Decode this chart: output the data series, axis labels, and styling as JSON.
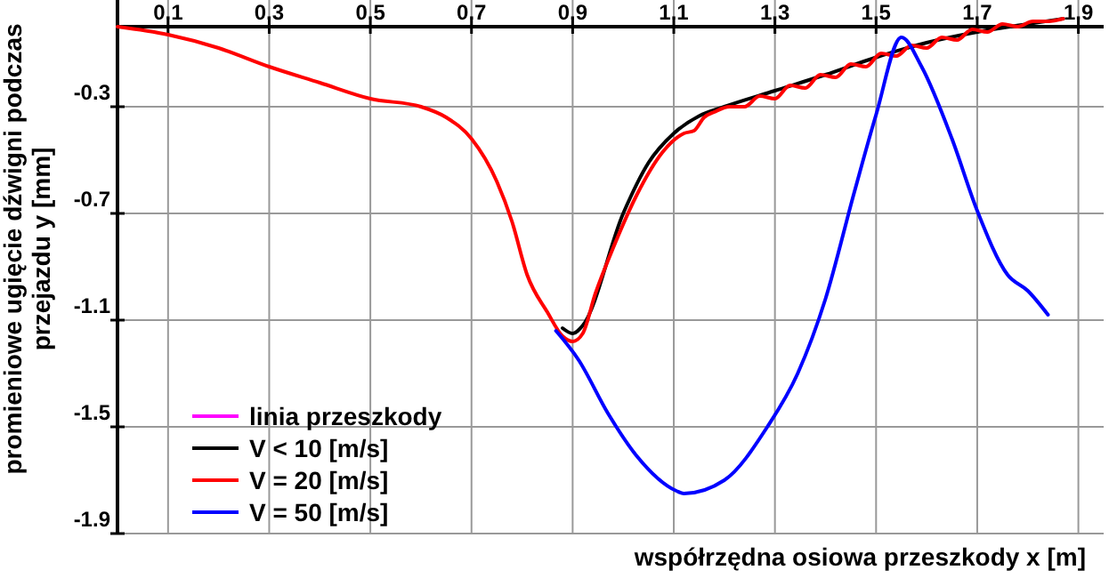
{
  "chart_data": {
    "type": "line",
    "xlabel": "współrzędna osiowa przeszkody x [m]",
    "ylabel": "promieniowe ugięcie dźwigni podczas przejazdu  y [mm]",
    "xlim": [
      0,
      1.95
    ],
    "ylim": [
      -1.9,
      0.1
    ],
    "xticks": [
      0.1,
      0.3,
      0.5,
      0.7,
      0.9,
      1.1,
      1.3,
      1.5,
      1.7,
      1.9
    ],
    "yticks": [
      -0.3,
      -0.7,
      -1.1,
      -1.5,
      -1.9
    ],
    "grid": true,
    "legend": "bottom left",
    "marker": "none",
    "line_style": "solid",
    "series": [
      {
        "name": "linia przeszkody",
        "color": "#ff00ff"
      },
      {
        "name": "V < 10 [m/s]",
        "color": "#000000",
        "x": [
          0.88,
          0.9,
          0.92,
          1.0,
          1.05,
          1.1,
          1.15,
          1.2,
          1.3,
          1.4,
          1.5,
          1.6,
          1.7,
          1.8,
          1.87
        ],
        "values": [
          -1.13,
          -1.15,
          -1.12,
          -0.7,
          -0.51,
          -0.4,
          -0.335,
          -0.3,
          -0.24,
          -0.18,
          -0.115,
          -0.06,
          -0.02,
          0.01,
          0.03
        ]
      },
      {
        "name": "V = 20 [m/s]",
        "color": "#ff0000",
        "x": [
          0,
          0.1,
          0.2,
          0.3,
          0.4,
          0.5,
          0.6,
          0.65,
          0.7,
          0.75,
          0.78,
          0.81,
          0.85,
          0.88,
          0.9,
          0.92,
          0.945,
          0.98,
          1.027,
          1.078,
          1.12,
          1.14,
          1.16,
          1.18,
          1.21,
          1.24,
          1.27,
          1.3,
          1.33,
          1.36,
          1.39,
          1.42,
          1.45,
          1.48,
          1.51,
          1.54,
          1.57,
          1.6,
          1.63,
          1.66,
          1.69,
          1.72,
          1.75,
          1.78,
          1.81,
          1.84,
          1.87
        ],
        "values": [
          0,
          -0.03,
          -0.08,
          -0.15,
          -0.21,
          -0.27,
          -0.3,
          -0.34,
          -0.42,
          -0.58,
          -0.73,
          -0.93,
          -1.07,
          -1.16,
          -1.18,
          -1.15,
          -1,
          -0.83,
          -0.63,
          -0.47,
          -0.4,
          -0.39,
          -0.34,
          -0.32,
          -0.3,
          -0.3,
          -0.26,
          -0.27,
          -0.22,
          -0.23,
          -0.18,
          -0.19,
          -0.14,
          -0.15,
          -0.1,
          -0.11,
          -0.07,
          -0.08,
          -0.04,
          -0.05,
          -0.01,
          -0.02,
          0.01,
          0,
          0.02,
          0.02,
          0.03
        ]
      },
      {
        "name": "V = 50 [m/s]",
        "color": "#0000ff",
        "x": [
          0.867,
          0.912,
          0.97,
          1.027,
          1.105,
          1.12,
          1.2,
          1.285,
          1.345,
          1.4,
          1.457,
          1.5,
          1.55,
          1.59,
          1.65,
          1.7,
          1.76,
          1.8,
          1.84
        ],
        "values": [
          -1.14,
          -1.25,
          -1.45,
          -1.61,
          -1.74,
          -1.75,
          -1.7,
          -1.5,
          -1.3,
          -1.02,
          -0.62,
          -0.33,
          -0.04,
          -0.15,
          -0.42,
          -0.69,
          -0.93,
          -0.99,
          -1.08
        ]
      }
    ]
  }
}
